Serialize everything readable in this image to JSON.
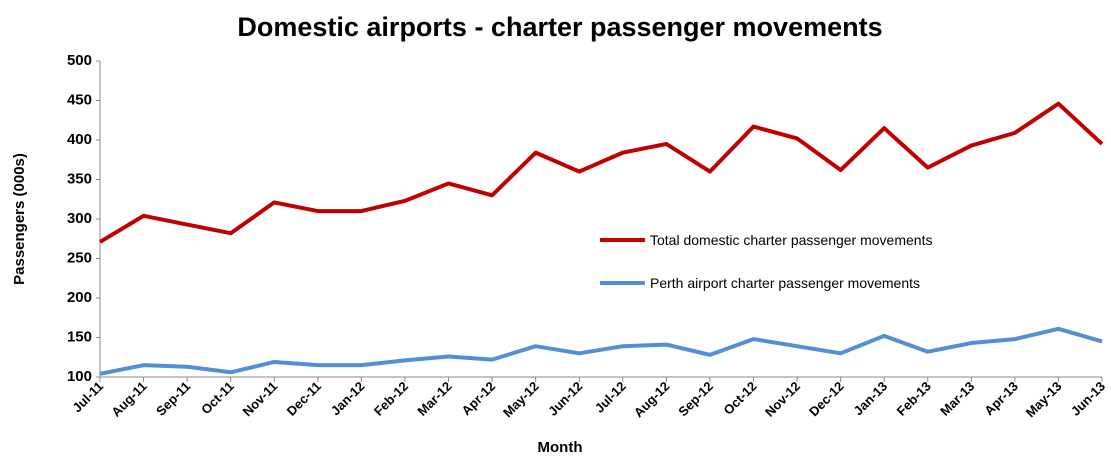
{
  "chart_data": {
    "type": "line",
    "title": "Domestic airports - charter passenger movements",
    "x_label": "Month",
    "y_label": "Passengers (000s)",
    "categories": [
      "Jul-11",
      "Aug-11",
      "Sep-11",
      "Oct-11",
      "Nov-11",
      "Dec-11",
      "Jan-12",
      "Feb-12",
      "Mar-12",
      "Apr-12",
      "May-12",
      "Jun-12",
      "Jul-12",
      "Aug-12",
      "Sep-12",
      "Oct-12",
      "Nov-12",
      "Dec-12",
      "Jan-13",
      "Feb-13",
      "Mar-13",
      "Apr-13",
      "May-13",
      "Jun-13"
    ],
    "series": [
      {
        "name": "Total domestic charter passenger movements",
        "color": "#c00000",
        "values": [
          271,
          304,
          293,
          282,
          321,
          310,
          310,
          323,
          345,
          330,
          384,
          360,
          384,
          395,
          360,
          417,
          402,
          362,
          415,
          365,
          393,
          409,
          446,
          395
        ]
      },
      {
        "name": "Perth airport charter passenger movements",
        "color": "#558ed5",
        "values": [
          104,
          115,
          113,
          106,
          119,
          115,
          115,
          121,
          126,
          122,
          139,
          130,
          139,
          141,
          128,
          148,
          139,
          130,
          152,
          132,
          143,
          148,
          161,
          145
        ]
      }
    ],
    "ylim": [
      100,
      500
    ],
    "yticks": [
      100,
      150,
      200,
      250,
      300,
      350,
      400,
      450,
      500
    ],
    "grid": false
  }
}
